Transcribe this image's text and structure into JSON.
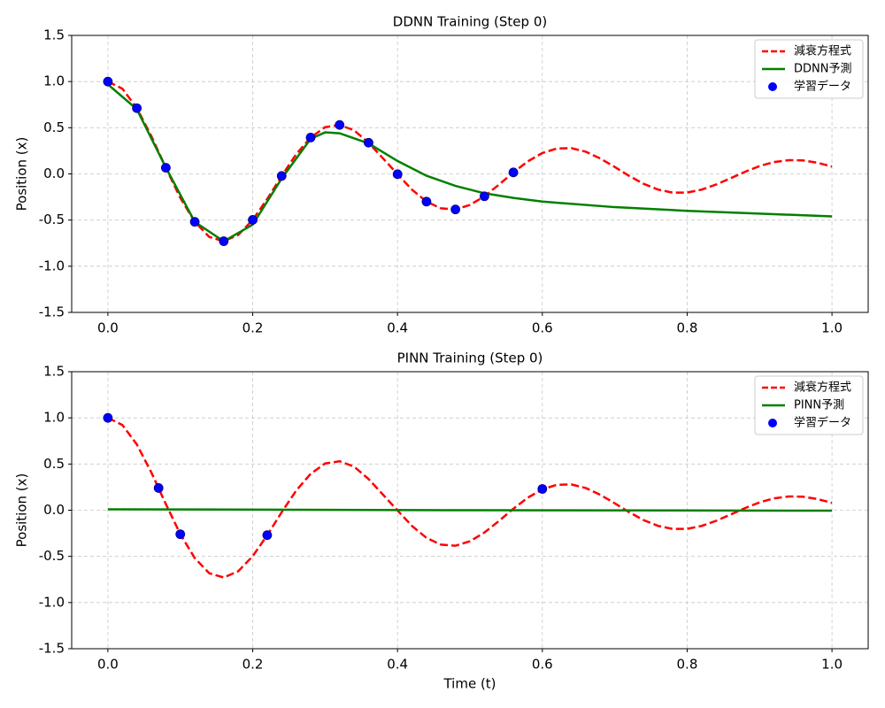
{
  "chart_data": [
    {
      "type": "line",
      "title": "DDNN Training (Step 0)",
      "ylabel": "Position (x)",
      "xlim": [
        -0.05,
        1.05
      ],
      "ylim": [
        -1.5,
        1.5
      ],
      "xticks": [
        {
          "value": 0,
          "label": "0.0"
        },
        0.2,
        0.4,
        0.6,
        0.8,
        {
          "value": 1,
          "label": "1.0"
        }
      ],
      "yticks": [
        -1.5,
        {
          "value": -1,
          "label": "-1.0"
        },
        -0.5,
        {
          "value": 0,
          "label": "0.0"
        },
        0.5,
        {
          "value": 1,
          "label": "1.0"
        },
        1.5
      ],
      "grid": true,
      "legend": "upper right",
      "series": [
        {
          "name": "減衰方程式",
          "type": "line",
          "color": "#ff0000",
          "linestyle": "dashed",
          "x": [
            0,
            0.02,
            0.04,
            0.06,
            0.08,
            0.1,
            0.12,
            0.14,
            0.16,
            0.18,
            0.2,
            0.22,
            0.24,
            0.26,
            0.28,
            0.3,
            0.32,
            0.34,
            0.36,
            0.38,
            0.4,
            0.42,
            0.44,
            0.46,
            0.48,
            0.5,
            0.52,
            0.54,
            0.56,
            0.58,
            0.6,
            0.62,
            0.64,
            0.66,
            0.68,
            0.7,
            0.72,
            0.74,
            0.76,
            0.78,
            0.8,
            0.82,
            0.84,
            0.86,
            0.88,
            0.9,
            0.92,
            0.94,
            0.96,
            0.98,
            1
          ],
          "values": [
            1,
            0.923,
            0.712,
            0.409,
            0.067,
            -0.259,
            -0.519,
            -0.683,
            -0.729,
            -0.661,
            -0.498,
            -0.272,
            -0.022,
            0.212,
            0.394,
            0.506,
            0.53,
            0.472,
            0.338,
            0.168,
            -0.003,
            -0.171,
            -0.3,
            -0.373,
            -0.385,
            -0.336,
            -0.242,
            -0.117,
            0.016,
            0.136,
            0.226,
            0.275,
            0.279,
            0.24,
            0.167,
            0.075,
            -0.022,
            -0.108,
            -0.17,
            -0.203,
            -0.202,
            -0.17,
            -0.115,
            -0.047,
            0.023,
            0.085,
            0.128,
            0.149,
            0.146,
            0.121,
            0.079
          ]
        },
        {
          "name": "DDNN予測",
          "type": "line",
          "color": "#008000",
          "linestyle": "solid",
          "x": [
            0,
            0.04,
            0.08,
            0.12,
            0.16,
            0.2,
            0.24,
            0.28,
            0.3,
            0.32,
            0.36,
            0.4,
            0.44,
            0.48,
            0.52,
            0.56,
            0.6,
            0.7,
            0.8,
            0.9,
            1
          ],
          "values": [
            0.97,
            0.7,
            0.07,
            -0.52,
            -0.73,
            -0.55,
            -0.05,
            0.38,
            0.45,
            0.44,
            0.33,
            0.14,
            -0.02,
            -0.13,
            -0.21,
            -0.26,
            -0.3,
            -0.36,
            -0.4,
            -0.43,
            -0.46
          ]
        },
        {
          "name": "学習データ",
          "type": "scatter",
          "color": "#0000ff",
          "x": [
            0,
            0.04,
            0.08,
            0.12,
            0.16,
            0.2,
            0.24,
            0.28,
            0.32,
            0.36,
            0.4,
            0.44,
            0.48,
            0.52,
            0.56
          ],
          "values": [
            1,
            0.712,
            0.067,
            -0.519,
            -0.729,
            -0.498,
            -0.022,
            0.394,
            0.53,
            0.338,
            -0.003,
            -0.3,
            -0.385,
            -0.242,
            0.016
          ]
        }
      ]
    },
    {
      "type": "line",
      "title": "PINN Training (Step 0)",
      "ylabel": "Position (x)",
      "xlabel": "Time (t)",
      "xlim": [
        -0.05,
        1.05
      ],
      "ylim": [
        -1.5,
        1.5
      ],
      "xticks": [
        {
          "value": 0,
          "label": "0.0"
        },
        0.2,
        0.4,
        0.6,
        0.8,
        {
          "value": 1,
          "label": "1.0"
        }
      ],
      "yticks": [
        -1.5,
        {
          "value": -1,
          "label": "-1.0"
        },
        -0.5,
        {
          "value": 0,
          "label": "0.0"
        },
        0.5,
        {
          "value": 1,
          "label": "1.0"
        },
        1.5
      ],
      "grid": true,
      "legend": "upper right",
      "series": [
        {
          "name": "減衰方程式",
          "type": "line",
          "color": "#ff0000",
          "linestyle": "dashed",
          "x": [
            0,
            0.02,
            0.04,
            0.06,
            0.08,
            0.1,
            0.12,
            0.14,
            0.16,
            0.18,
            0.2,
            0.22,
            0.24,
            0.26,
            0.28,
            0.3,
            0.32,
            0.34,
            0.36,
            0.38,
            0.4,
            0.42,
            0.44,
            0.46,
            0.48,
            0.5,
            0.52,
            0.54,
            0.56,
            0.58,
            0.6,
            0.62,
            0.64,
            0.66,
            0.68,
            0.7,
            0.72,
            0.74,
            0.76,
            0.78,
            0.8,
            0.82,
            0.84,
            0.86,
            0.88,
            0.9,
            0.92,
            0.94,
            0.96,
            0.98,
            1
          ],
          "values": [
            1,
            0.923,
            0.712,
            0.409,
            0.067,
            -0.259,
            -0.519,
            -0.683,
            -0.729,
            -0.661,
            -0.498,
            -0.272,
            -0.022,
            0.212,
            0.394,
            0.506,
            0.53,
            0.472,
            0.338,
            0.168,
            -0.003,
            -0.171,
            -0.3,
            -0.373,
            -0.385,
            -0.336,
            -0.242,
            -0.117,
            0.016,
            0.136,
            0.226,
            0.275,
            0.279,
            0.24,
            0.167,
            0.075,
            -0.022,
            -0.108,
            -0.17,
            -0.203,
            -0.202,
            -0.17,
            -0.115,
            -0.047,
            0.023,
            0.085,
            0.128,
            0.149,
            0.146,
            0.121,
            0.079
          ]
        },
        {
          "name": "PINN予測",
          "type": "line",
          "color": "#008000",
          "linestyle": "solid",
          "x": [
            0,
            0.5,
            1
          ],
          "values": [
            0.01,
            0.0,
            -0.005
          ]
        },
        {
          "name": "学習データ",
          "type": "scatter",
          "color": "#0000ff",
          "x": [
            0,
            0.07,
            0.1,
            0.22,
            0.6
          ],
          "values": [
            1,
            0.24,
            -0.26,
            -0.27,
            0.23
          ]
        }
      ]
    }
  ]
}
